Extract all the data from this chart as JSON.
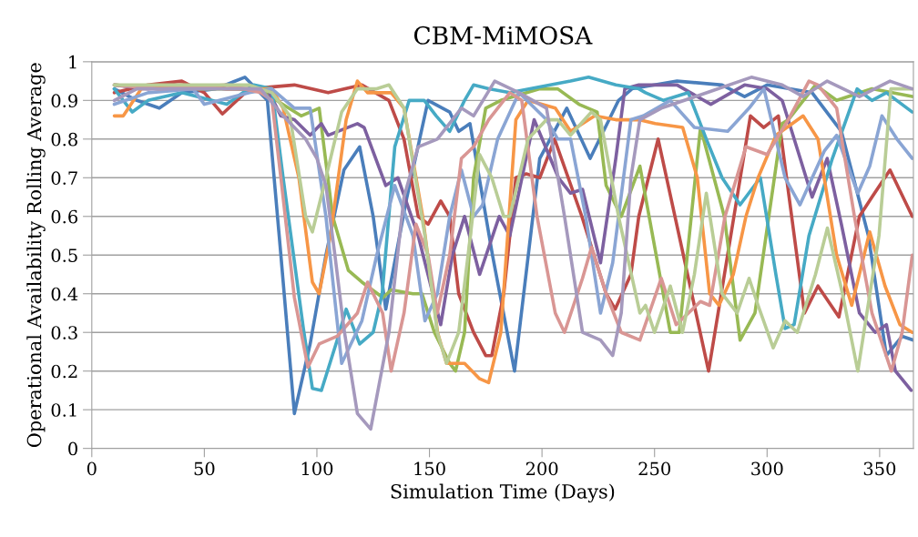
{
  "chart_data": {
    "type": "line",
    "title": "CBM-MiMOSA",
    "xlabel": "Simulation Time (Days)",
    "ylabel": "Operational Availability Rolling Average",
    "xlim": [
      0,
      365
    ],
    "xticks": [
      0,
      50,
      100,
      150,
      200,
      250,
      300,
      350
    ],
    "ylim": [
      0,
      1
    ],
    "yticks": [
      {
        "value": 0,
        "label": "0"
      },
      {
        "value": 0.1,
        "label": "0.1"
      },
      {
        "value": 0.2,
        "label": "0.2"
      },
      {
        "value": 0.3,
        "label": "0.3"
      },
      {
        "value": 0.4,
        "label": "0.4"
      },
      {
        "value": 0.5,
        "label": "0.5"
      },
      {
        "value": 0.6,
        "label": "0.6"
      },
      {
        "value": 0.7,
        "label": "0.7"
      },
      {
        "value": 0.8,
        "label": "0.8"
      },
      {
        "value": 0.9,
        "label": "0.9"
      },
      {
        "value": 1,
        "label": "1"
      }
    ],
    "grid": "y",
    "line_style": "solid",
    "series": [
      {
        "color": "#4a7ebb",
        "x": [
          10,
          20,
          30,
          40,
          55,
          68,
          78,
          84,
          90,
          97,
          104,
          112,
          119,
          125,
          130.6,
          140,
          149.4,
          159,
          163,
          168,
          178,
          187.8,
          199,
          211,
          221.4,
          234,
          240,
          260,
          280,
          290,
          300,
          320,
          333,
          345,
          353,
          360,
          365
        ],
        "values": [
          0.93,
          0.9,
          0.88,
          0.92,
          0.93,
          0.96,
          0.9,
          0.5,
          0.09,
          0.27,
          0.5,
          0.72,
          0.78,
          0.6,
          0.36,
          0.65,
          0.9,
          0.87,
          0.82,
          0.84,
          0.5,
          0.2,
          0.75,
          0.88,
          0.75,
          0.9,
          0.93,
          0.95,
          0.94,
          0.91,
          0.94,
          0.92,
          0.82,
          0.55,
          0.24,
          0.29,
          0.28
        ]
      },
      {
        "color": "#be4b48",
        "x": [
          10,
          25,
          40,
          50,
          58,
          70,
          90,
          105,
          120,
          132,
          138.7,
          145,
          149.4,
          155,
          159,
          163,
          169.6,
          175,
          177.7,
          183,
          188.4,
          193,
          199,
          205.6,
          217.7,
          228.5,
          232.5,
          239.5,
          243,
          251.6,
          274,
          292.6,
          298.5,
          305,
          316.6,
          322.6,
          331.9,
          341,
          346.6,
          354.6,
          364.5
        ],
        "values": [
          0.92,
          0.94,
          0.95,
          0.92,
          0.865,
          0.93,
          0.94,
          0.92,
          0.94,
          0.9,
          0.8,
          0.6,
          0.58,
          0.64,
          0.6,
          0.4,
          0.3,
          0.24,
          0.24,
          0.4,
          0.7,
          0.71,
          0.7,
          0.8,
          0.6,
          0.4,
          0.36,
          0.45,
          0.6,
          0.8,
          0.2,
          0.86,
          0.83,
          0.86,
          0.35,
          0.42,
          0.34,
          0.6,
          0.65,
          0.72,
          0.6
        ]
      },
      {
        "color": "#98b954",
        "x": [
          10,
          30,
          50,
          75,
          82,
          93,
          101,
          107,
          114,
          120,
          129.3,
          133,
          142.7,
          146.7,
          152.2,
          159,
          161.6,
          165.6,
          169.6,
          175,
          181.7,
          199,
          207,
          216.4,
          224.5,
          228.5,
          235.2,
          243.5,
          257,
          261,
          270.4,
          281,
          288,
          294.6,
          306.7,
          309.4,
          321.5,
          330.9,
          346.6,
          364.5
        ],
        "values": [
          0.94,
          0.93,
          0.93,
          0.93,
          0.9,
          0.86,
          0.88,
          0.6,
          0.46,
          0.43,
          0.39,
          0.41,
          0.4,
          0.4,
          0.3,
          0.22,
          0.2,
          0.3,
          0.7,
          0.88,
          0.9,
          0.93,
          0.93,
          0.89,
          0.87,
          0.68,
          0.6,
          0.73,
          0.3,
          0.3,
          0.83,
          0.6,
          0.28,
          0.35,
          0.84,
          0.85,
          0.94,
          0.9,
          0.93,
          0.91
        ]
      },
      {
        "color": "#7d60a0",
        "x": [
          10,
          25,
          40,
          60,
          78,
          84,
          90,
          97,
          102,
          105,
          118,
          121,
          130.6,
          136,
          145,
          155,
          160.2,
          165.6,
          172.3,
          181,
          185.7,
          196.5,
          207.3,
          212.7,
          218,
          226,
          232.8,
          236.8,
          243,
          260,
          275,
          290,
          300,
          306.7,
          314.7,
          320,
          326.7,
          333,
          341,
          348,
          353,
          357,
          364
        ],
        "values": [
          0.94,
          0.93,
          0.94,
          0.93,
          0.93,
          0.86,
          0.85,
          0.81,
          0.84,
          0.81,
          0.84,
          0.83,
          0.68,
          0.7,
          0.55,
          0.32,
          0.5,
          0.6,
          0.45,
          0.6,
          0.55,
          0.85,
          0.7,
          0.66,
          0.67,
          0.48,
          0.75,
          0.93,
          0.94,
          0.94,
          0.89,
          0.94,
          0.93,
          0.9,
          0.75,
          0.65,
          0.75,
          0.58,
          0.35,
          0.3,
          0.32,
          0.2,
          0.15
        ]
      },
      {
        "color": "#46aac5",
        "x": [
          10,
          18,
          25,
          40,
          60,
          72,
          80,
          85,
          94,
          98,
          102,
          109,
          113,
          119,
          125,
          129,
          134.6,
          141,
          147.7,
          153,
          159,
          165.6,
          169.6,
          176.3,
          185.7,
          212.7,
          220.7,
          232.8,
          243,
          246,
          254,
          265,
          273,
          280,
          288,
          297,
          303.9,
          308,
          312,
          318.6,
          329,
          340,
          346.6,
          353,
          364.5
        ],
        "values": [
          0.93,
          0.87,
          0.9,
          0.92,
          0.89,
          0.94,
          0.93,
          0.7,
          0.31,
          0.155,
          0.15,
          0.28,
          0.36,
          0.27,
          0.3,
          0.4,
          0.78,
          0.9,
          0.9,
          0.86,
          0.82,
          0.9,
          0.94,
          0.93,
          0.92,
          0.95,
          0.96,
          0.94,
          0.93,
          0.92,
          0.9,
          0.92,
          0.8,
          0.7,
          0.63,
          0.7,
          0.45,
          0.31,
          0.32,
          0.55,
          0.75,
          0.93,
          0.9,
          0.92,
          0.87
        ]
      },
      {
        "color": "#f79646",
        "x": [
          10,
          14,
          22,
          40,
          60,
          80,
          85,
          92,
          98,
          101,
          106,
          113,
          118,
          122.5,
          133,
          138.7,
          147,
          153.6,
          157.6,
          165.6,
          172.3,
          176.3,
          181.7,
          188.4,
          193.8,
          205.9,
          212.7,
          223.4,
          232.8,
          243,
          250.3,
          262.5,
          269,
          274.5,
          278.6,
          285,
          290.6,
          296,
          304,
          316,
          322.6,
          330.9,
          337.6,
          345.6,
          352.4,
          359,
          364.5
        ],
        "values": [
          0.86,
          0.86,
          0.93,
          0.94,
          0.93,
          0.93,
          0.88,
          0.7,
          0.43,
          0.4,
          0.55,
          0.85,
          0.95,
          0.92,
          0.92,
          0.88,
          0.6,
          0.3,
          0.22,
          0.22,
          0.18,
          0.17,
          0.3,
          0.85,
          0.9,
          0.88,
          0.82,
          0.86,
          0.85,
          0.85,
          0.84,
          0.83,
          0.7,
          0.4,
          0.37,
          0.45,
          0.6,
          0.7,
          0.81,
          0.86,
          0.8,
          0.5,
          0.37,
          0.56,
          0.42,
          0.32,
          0.3
        ]
      },
      {
        "color": "#8aa5d4",
        "x": [
          10,
          25,
          45,
          50,
          70,
          80,
          90,
          97,
          104,
          111,
          120,
          126.6,
          134.6,
          142.7,
          148,
          153.5,
          159,
          164.2,
          169.6,
          173.6,
          180.3,
          189.8,
          202,
          207,
          212.7,
          219.4,
          226,
          231.4,
          239.5,
          245,
          257,
          267.7,
          282.5,
          292,
          298.6,
          308,
          314.6,
          325.5,
          330.9,
          340.3,
          345.6,
          351,
          357.7,
          364.5
        ],
        "values": [
          0.89,
          0.92,
          0.93,
          0.89,
          0.92,
          0.93,
          0.88,
          0.88,
          0.6,
          0.22,
          0.33,
          0.5,
          0.68,
          0.55,
          0.33,
          0.4,
          0.6,
          0.72,
          0.6,
          0.63,
          0.8,
          0.92,
          0.85,
          0.8,
          0.8,
          0.6,
          0.35,
          0.48,
          0.85,
          0.86,
          0.9,
          0.83,
          0.82,
          0.88,
          0.93,
          0.7,
          0.63,
          0.77,
          0.81,
          0.66,
          0.73,
          0.86,
          0.8,
          0.75
        ]
      },
      {
        "color": "#d99694",
        "x": [
          10,
          30,
          60,
          75,
          80,
          84,
          90,
          96,
          101,
          109,
          118,
          122.5,
          129.2,
          133,
          138.7,
          144,
          149.4,
          153.5,
          159,
          164.2,
          169.6,
          176.3,
          185.7,
          191,
          197.8,
          205.9,
          210,
          218,
          222,
          228.5,
          235.2,
          243.5,
          253,
          259.6,
          270.4,
          274.5,
          281.3,
          290.6,
          300,
          309.4,
          318.6,
          322.6,
          330.9,
          338.8,
          346.6,
          355.2,
          360,
          364.5
        ],
        "values": [
          0.94,
          0.93,
          0.94,
          0.92,
          0.9,
          0.7,
          0.39,
          0.21,
          0.27,
          0.29,
          0.35,
          0.43,
          0.35,
          0.2,
          0.35,
          0.58,
          0.5,
          0.35,
          0.5,
          0.75,
          0.78,
          0.85,
          0.92,
          0.9,
          0.6,
          0.35,
          0.3,
          0.44,
          0.52,
          0.4,
          0.3,
          0.28,
          0.44,
          0.32,
          0.38,
          0.37,
          0.6,
          0.78,
          0.76,
          0.85,
          0.95,
          0.94,
          0.88,
          0.6,
          0.35,
          0.2,
          0.3,
          0.5
        ]
      },
      {
        "color": "#b9cd96",
        "x": [
          10,
          40,
          70,
          80,
          88,
          95,
          98,
          104,
          111,
          118,
          126.6,
          132,
          138.7,
          148,
          153.5,
          157.6,
          163,
          168.2,
          172.3,
          177.7,
          183,
          185.7,
          193.8,
          202,
          207,
          212.7,
          222,
          226,
          234,
          243.5,
          246,
          250,
          257,
          262.4,
          267.7,
          273,
          280,
          286.7,
          292,
          296,
          302.7,
          308,
          313.4,
          321.5,
          326.8,
          333.5,
          340.3,
          349.7,
          355,
          364.5
        ],
        "values": [
          0.94,
          0.94,
          0.94,
          0.92,
          0.86,
          0.6,
          0.56,
          0.7,
          0.87,
          0.93,
          0.93,
          0.94,
          0.88,
          0.55,
          0.3,
          0.22,
          0.3,
          0.55,
          0.76,
          0.7,
          0.6,
          0.6,
          0.8,
          0.85,
          0.85,
          0.81,
          0.87,
          0.85,
          0.6,
          0.35,
          0.37,
          0.3,
          0.42,
          0.3,
          0.45,
          0.66,
          0.4,
          0.35,
          0.44,
          0.37,
          0.26,
          0.33,
          0.3,
          0.45,
          0.57,
          0.4,
          0.2,
          0.55,
          0.93,
          0.93
        ]
      },
      {
        "color": "#a599bd",
        "x": [
          10,
          20,
          45,
          70,
          75,
          85,
          95,
          100,
          104,
          108,
          112,
          118,
          123.9,
          132,
          138.7,
          145,
          153.5,
          164.2,
          169.6,
          179,
          189.8,
          202,
          210,
          218,
          226,
          231.4,
          235.2,
          239.5,
          243.5,
          253,
          273.3,
          293,
          306.7,
          316,
          326.7,
          341,
          354.6,
          364.5
        ],
        "values": [
          0.9,
          0.93,
          0.93,
          0.93,
          0.93,
          0.86,
          0.8,
          0.75,
          0.68,
          0.5,
          0.31,
          0.09,
          0.05,
          0.3,
          0.65,
          0.78,
          0.8,
          0.88,
          0.86,
          0.95,
          0.92,
          0.88,
          0.6,
          0.3,
          0.28,
          0.24,
          0.35,
          0.7,
          0.85,
          0.88,
          0.92,
          0.96,
          0.94,
          0.91,
          0.95,
          0.91,
          0.95,
          0.93
        ]
      }
    ]
  }
}
